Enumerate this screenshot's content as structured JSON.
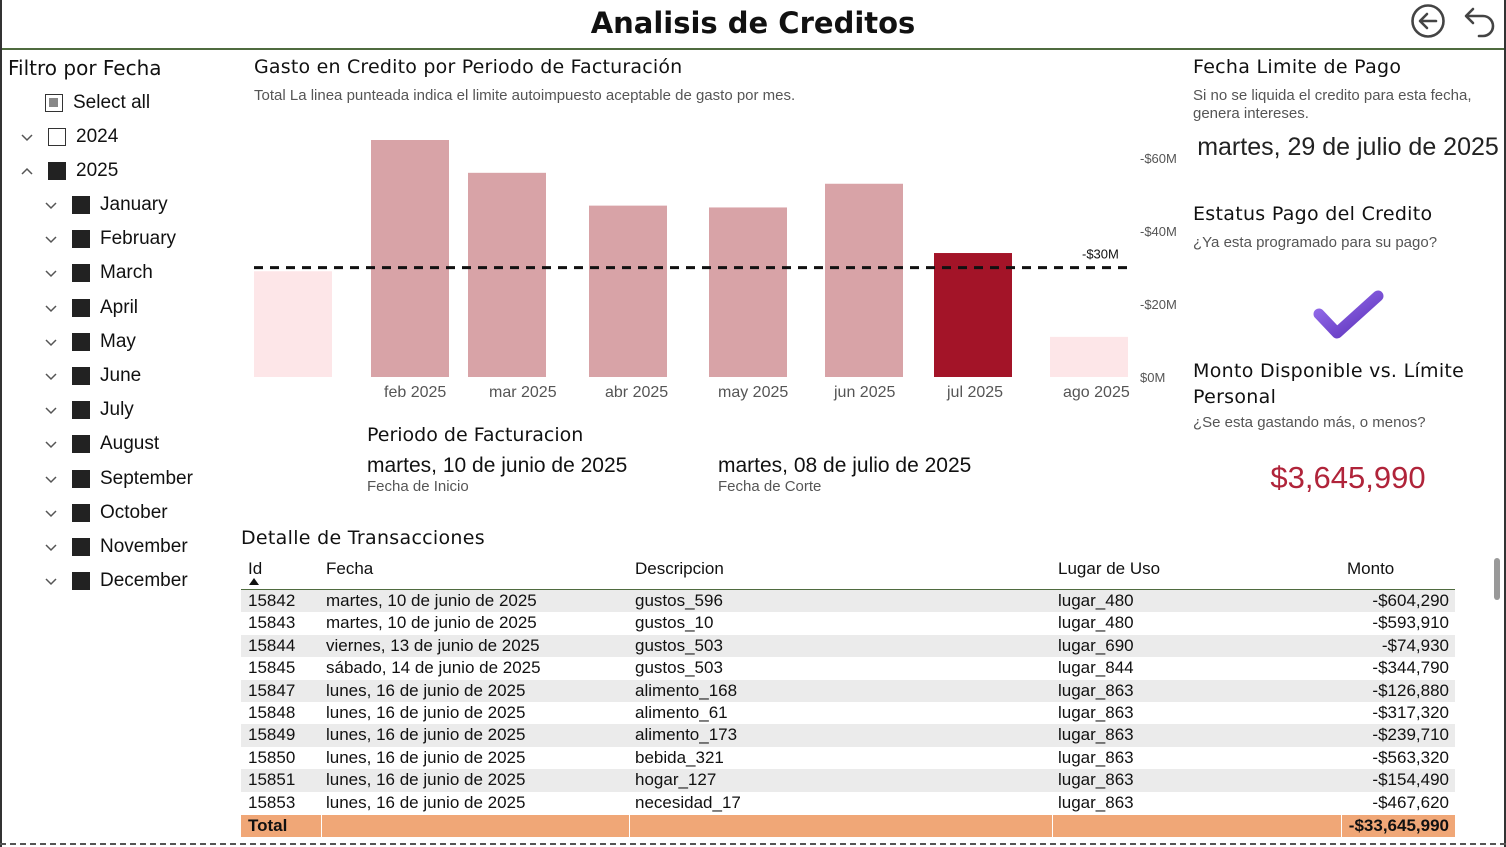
{
  "header": {
    "title": "Analisis de Creditos",
    "back_icon": "back-arrow-circle-icon",
    "undo_icon": "undo-arrow-icon"
  },
  "filter": {
    "title": "Filtro por Fecha",
    "select_all": "Select all",
    "years": [
      {
        "label": "2024",
        "checked": false,
        "expanded": false
      },
      {
        "label": "2025",
        "checked": true,
        "expanded": true
      }
    ],
    "months": [
      "January",
      "February",
      "March",
      "April",
      "May",
      "June",
      "July",
      "August",
      "September",
      "October",
      "November",
      "December"
    ]
  },
  "chart": {
    "title": "Gasto en Credito por Periodo de Facturación",
    "subtitle": "Total La linea punteada indica el limite autoimpuesto aceptable de gasto por mes.",
    "limit_label": "-$30M",
    "colors": {
      "normal": "#d8a3a7",
      "current": "#a31428",
      "light": "#fde6e8",
      "limit": "#111111"
    }
  },
  "chart_data": {
    "type": "bar",
    "categories": [
      "",
      "feb 2025",
      "mar 2025",
      "abr 2025",
      "may 2025",
      "jun 2025",
      "jul 2025",
      "ago 2025"
    ],
    "values": [
      29,
      65,
      56,
      47,
      46.5,
      53,
      34,
      11
    ],
    "highlight_index": 6,
    "light_indices": [
      0,
      7
    ],
    "y_ticks": [
      "$0M",
      "-$20M",
      "-$40M",
      "-$60M"
    ],
    "y_tick_values": [
      0,
      20,
      40,
      60
    ],
    "reference_line": {
      "value": 30,
      "label": "-$30M",
      "style": "dashed"
    },
    "ylim": [
      0,
      65
    ],
    "xlabel": "",
    "ylabel": ""
  },
  "periodo": {
    "title": "Periodo de Facturacion",
    "start_date": "martes, 10 de junio de 2025",
    "start_caption": "Fecha de Inicio",
    "end_date": "martes, 08 de julio de 2025",
    "end_caption": "Fecha de Corte"
  },
  "due": {
    "title": "Fecha Limite de Pago",
    "subtitle": "Si no se liquida el credito para esta fecha, genera intereses.",
    "date": "martes, 29 de julio de 2025"
  },
  "status": {
    "title": "Estatus Pago del Credito",
    "subtitle": "¿Ya esta programado para su pago?",
    "icon": "checkmark-icon",
    "color": "#7b4fd6"
  },
  "available": {
    "title": "Monto Disponible vs. Límite Personal",
    "subtitle": "¿Se esta gastando más, o menos?",
    "value": "$3,645,990"
  },
  "transactions": {
    "title": "Detalle de Transacciones",
    "columns": {
      "id": "Id",
      "fecha": "Fecha",
      "desc": "Descripcion",
      "lugar": "Lugar de Uso",
      "monto": "Monto"
    },
    "rows": [
      {
        "id": "15842",
        "fecha": "martes, 10 de junio de 2025",
        "desc": "gustos_596",
        "lugar": "lugar_480",
        "monto": "-$604,290"
      },
      {
        "id": "15843",
        "fecha": "martes, 10 de junio de 2025",
        "desc": "gustos_10",
        "lugar": "lugar_480",
        "monto": "-$593,910"
      },
      {
        "id": "15844",
        "fecha": "viernes, 13 de junio de 2025",
        "desc": "gustos_503",
        "lugar": "lugar_690",
        "monto": "-$74,930"
      },
      {
        "id": "15845",
        "fecha": "sábado, 14 de junio de 2025",
        "desc": "gustos_503",
        "lugar": "lugar_844",
        "monto": "-$344,790"
      },
      {
        "id": "15847",
        "fecha": "lunes, 16 de junio de 2025",
        "desc": "alimento_168",
        "lugar": "lugar_863",
        "monto": "-$126,880"
      },
      {
        "id": "15848",
        "fecha": "lunes, 16 de junio de 2025",
        "desc": "alimento_61",
        "lugar": "lugar_863",
        "monto": "-$317,320"
      },
      {
        "id": "15849",
        "fecha": "lunes, 16 de junio de 2025",
        "desc": "alimento_173",
        "lugar": "lugar_863",
        "monto": "-$239,710"
      },
      {
        "id": "15850",
        "fecha": "lunes, 16 de junio de 2025",
        "desc": "bebida_321",
        "lugar": "lugar_863",
        "monto": "-$563,320"
      },
      {
        "id": "15851",
        "fecha": "lunes, 16 de junio de 2025",
        "desc": "hogar_127",
        "lugar": "lugar_863",
        "monto": "-$154,490"
      },
      {
        "id": "15853",
        "fecha": "lunes, 16 de junio de 2025",
        "desc": "necesidad_17",
        "lugar": "lugar_863",
        "monto": "-$467,620"
      }
    ],
    "total_label": "Total",
    "total_value": "-$33,645,990"
  }
}
